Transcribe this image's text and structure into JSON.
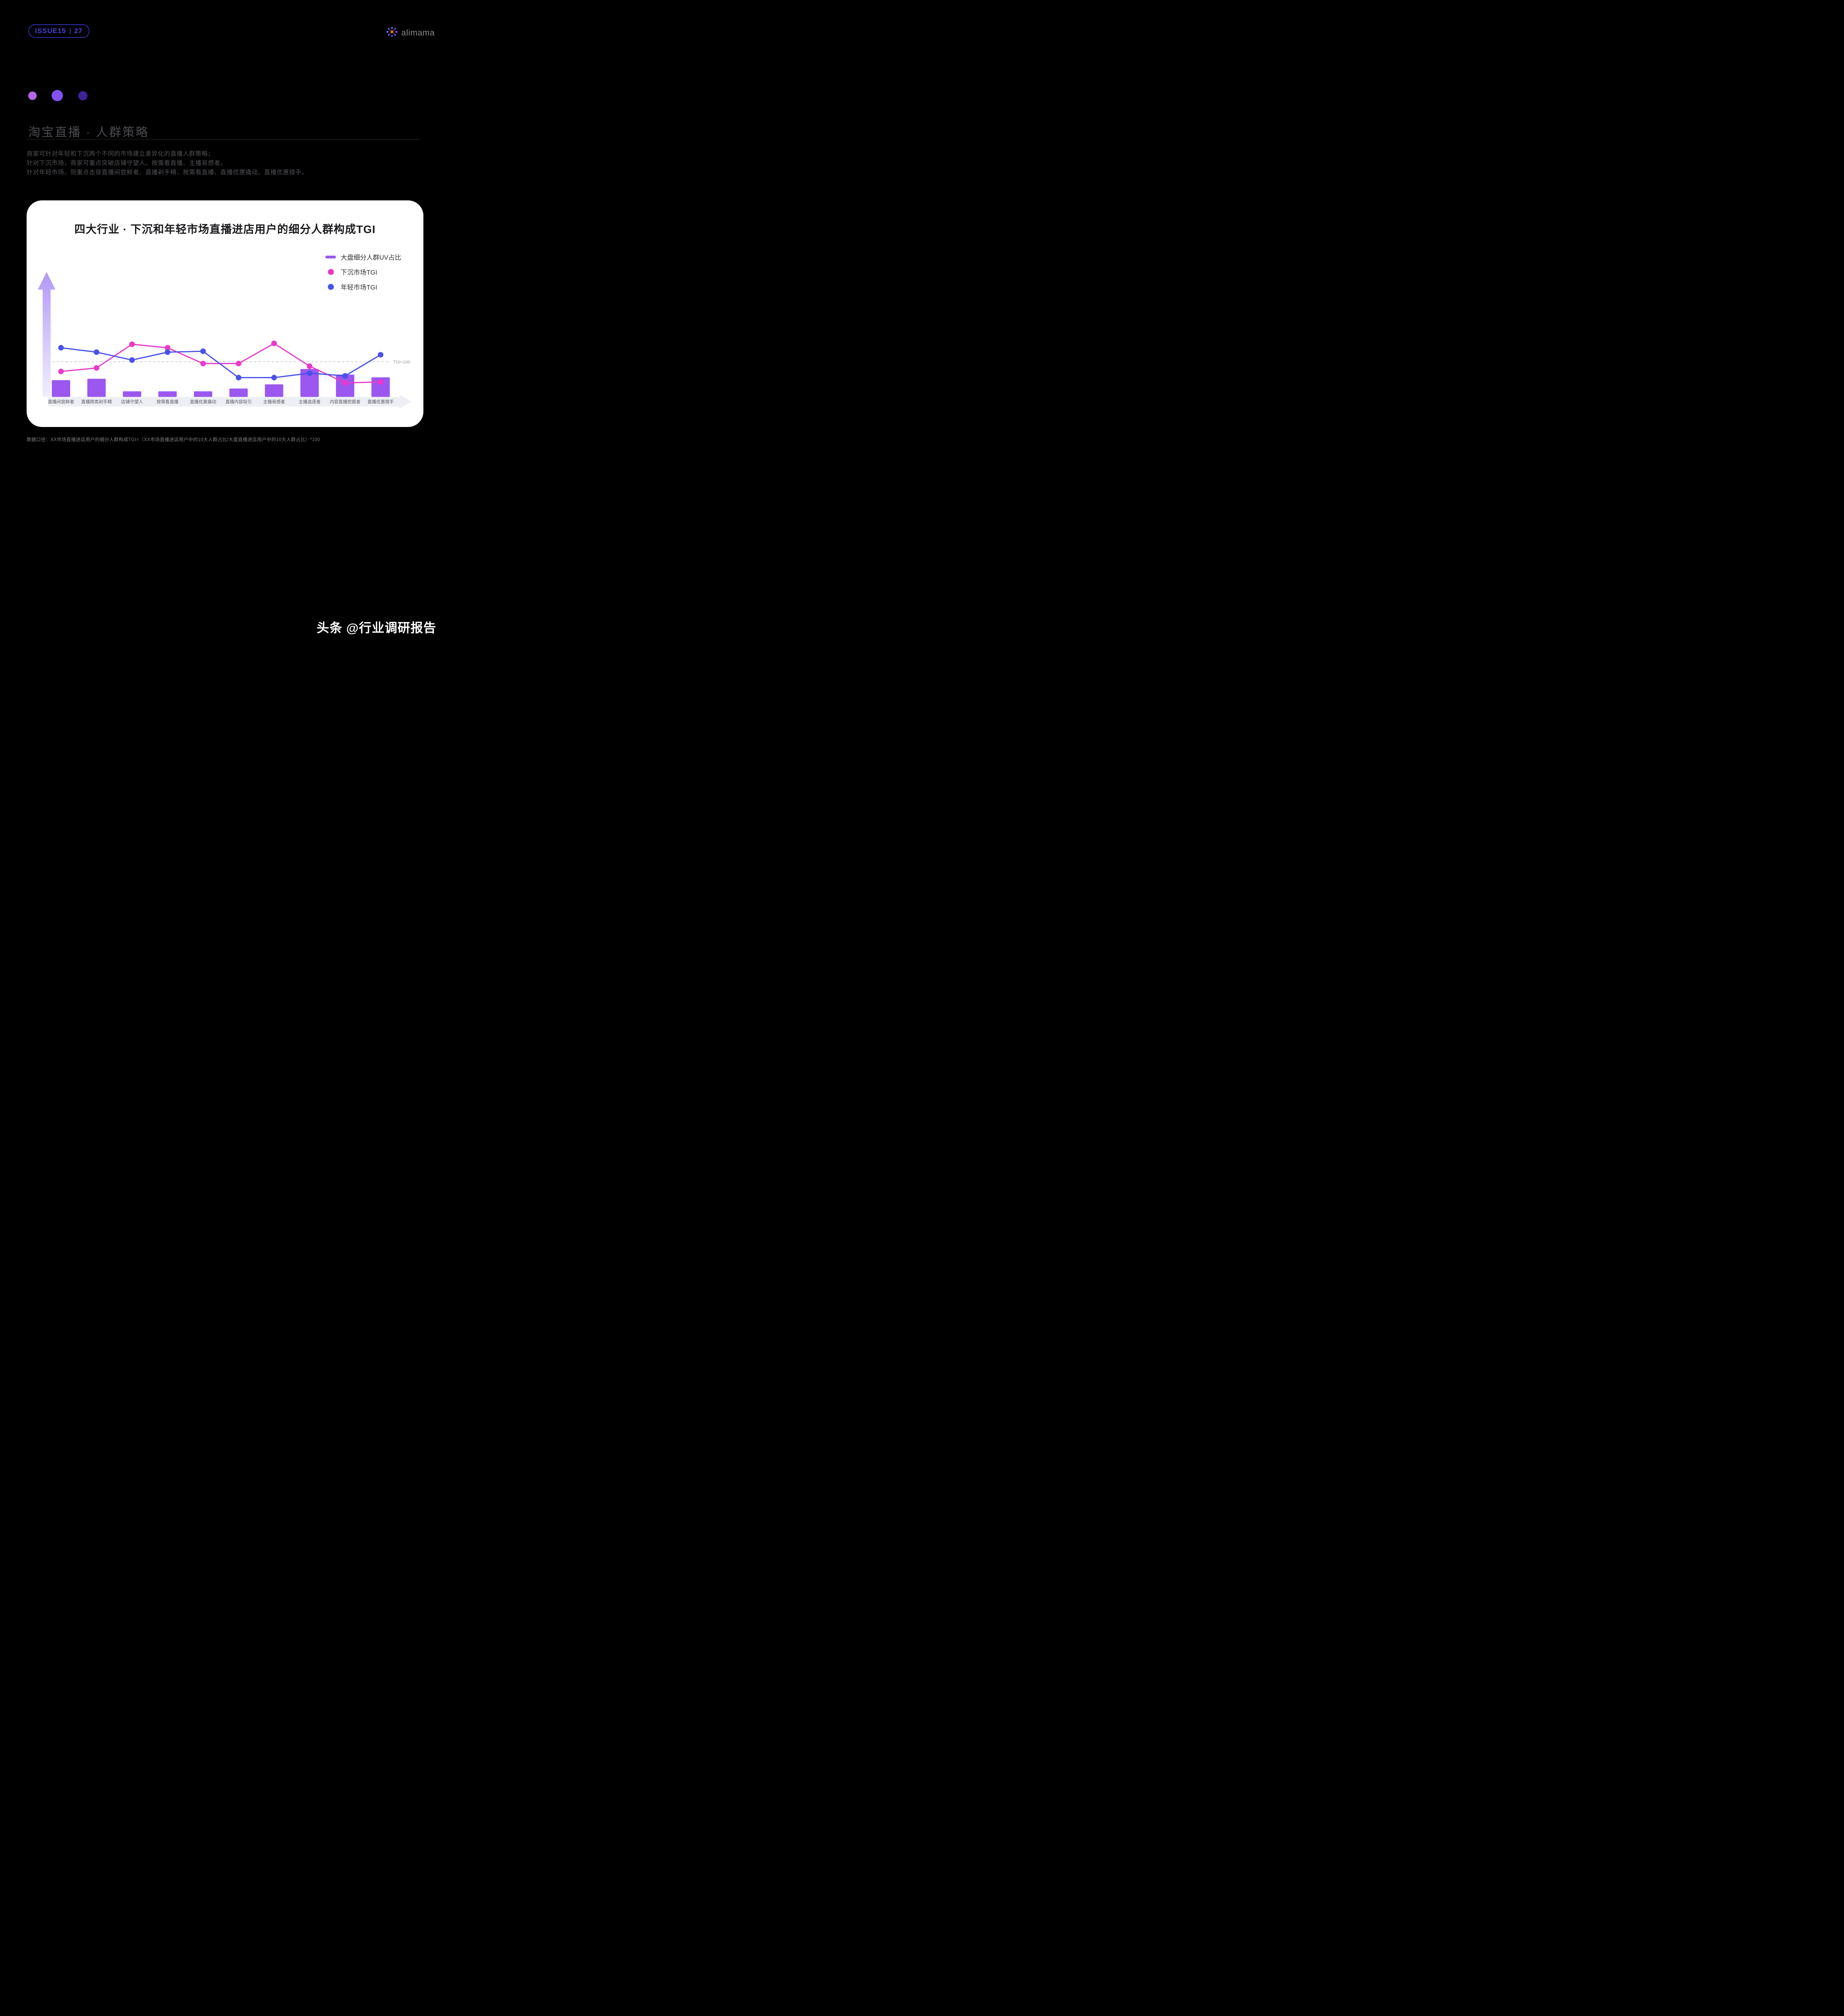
{
  "header": {
    "issue_left": "ISSUE15",
    "issue_right": "27",
    "logo_text": "alimama"
  },
  "section": {
    "title": "淘宝直播 · 人群策略",
    "lines": [
      "商家可针对年轻和下沉两个不同的市场建立差异化的直播人群策略；",
      "针对下沉市场，商家可重点突破店铺守望人、按需看直播、主播易感者。",
      "针对年轻市场，则重点击穿直播间尝鲜者、直播剁手精、按需看直播、直播优惠撬动、直播优惠猎手。"
    ]
  },
  "chart_data": {
    "type": "bar",
    "combo": "bar+line",
    "title": "四大行业 · 下沉和年轻市场直播进店用户的细分人群构成TGI",
    "categories": [
      "直播间尝鲜者",
      "直播跨类剁手精",
      "店铺守望人",
      "按需看直播",
      "直播优惠撬动",
      "直播内容吸引",
      "主播易感者",
      "主播追逐者",
      "内容直播挖掘者",
      "直播优惠猎手"
    ],
    "series": [
      {
        "name": "大盘细分人群UV占比",
        "type": "bar",
        "color": "#9b57f0",
        "unit": "relative UV share (est.)",
        "values": [
          12,
          13,
          4,
          4,
          4,
          6,
          9,
          20,
          16,
          14
        ]
      },
      {
        "name": "下沉市场TGI",
        "type": "line",
        "color": "#e93ac9",
        "values": [
          89,
          93,
          120,
          116,
          98,
          98,
          121,
          95,
          76,
          77
        ]
      },
      {
        "name": "年轻市场TGI",
        "type": "line",
        "color": "#4a52e8",
        "values": [
          116,
          111,
          102,
          111,
          112,
          82,
          82,
          87,
          84,
          108
        ]
      }
    ],
    "reference_line": {
      "label": "TGI=100",
      "value": 100
    },
    "ylim": [
      60,
      135
    ],
    "grid": false,
    "legend_position": "top-right"
  },
  "footnote": "数据口径：XX市场直播进店用户的细分人群构成TGI=（XX市场直播进店用户中的10大人群占比/大盘直播进店用户中的10大人群占比）*100",
  "watermark": "头条 @行业调研报告"
}
